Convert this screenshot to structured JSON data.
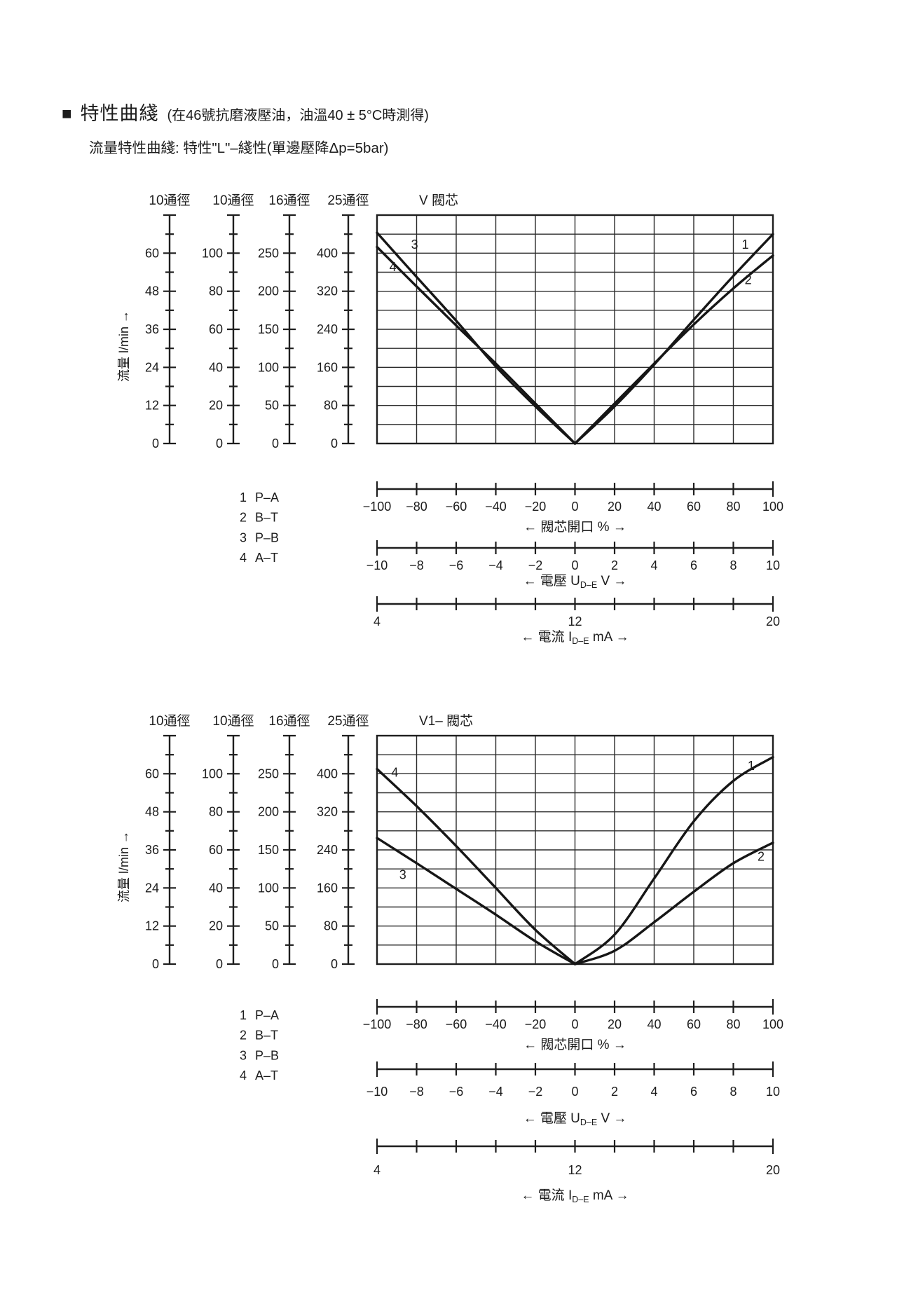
{
  "page": {
    "marker": "■",
    "heading": "特性曲綫",
    "heading_note": "(在46號抗磨液壓油，油溫40 ± 5°C時測得)",
    "subtitle": "流量特性曲綫: 特性\"L\"–綫性(單邊壓降Δp=5bar)"
  },
  "chart_data": [
    {
      "type": "line",
      "title": "V 閥芯",
      "grid": {
        "cols": 10,
        "rows": 12,
        "grid_on": true
      },
      "y_axis": {
        "label": "流量 l/min →",
        "scale_headers": [
          "10通徑",
          "10通徑",
          "16通徑",
          "25通徑"
        ],
        "scale_values": [
          [
            60,
            48,
            36,
            24,
            12,
            0
          ],
          [
            100,
            80,
            60,
            40,
            20,
            0
          ],
          [
            250,
            200,
            150,
            100,
            50,
            0
          ],
          [
            400,
            320,
            240,
            160,
            80,
            0
          ]
        ],
        "plot_full_scale": 480,
        "units_note": "curve values below are flow in l/min on the 25通徑 (0–400) scale"
      },
      "x_axes": [
        {
          "title": "← 閥芯開口 % →",
          "range": [
            -100,
            100
          ],
          "labels": [
            "−100",
            "−80",
            "−60",
            "−40",
            "−20",
            "0",
            "20",
            "40",
            "60",
            "80",
            "100"
          ],
          "label_positions": [
            0,
            1,
            2,
            3,
            4,
            5,
            6,
            7,
            8,
            9,
            10
          ]
        },
        {
          "title_pre": "← 電壓 U",
          "title_sub": "D–E",
          "title_post": " V →",
          "range": [
            -10,
            10
          ],
          "labels": [
            "−10",
            "−8",
            "−6",
            "−4",
            "−2",
            "0",
            "2",
            "4",
            "6",
            "8",
            "10"
          ],
          "label_positions": [
            0,
            1,
            2,
            3,
            4,
            5,
            6,
            7,
            8,
            9,
            10
          ]
        },
        {
          "title_pre": "← 電流 I",
          "title_sub": "D–E",
          "title_post": " mA →",
          "range": [
            4,
            20
          ],
          "labels": [
            "4",
            "12",
            "20"
          ],
          "label_positions": [
            0,
            5,
            10
          ]
        }
      ],
      "legend": [
        {
          "num": "1",
          "label": "P–A"
        },
        {
          "num": "2",
          "label": "B–T"
        },
        {
          "num": "3",
          "label": "P–B"
        },
        {
          "num": "4",
          "label": "A–T"
        }
      ],
      "series": [
        {
          "id": "1",
          "ports": "P–A",
          "points": [
            [
              0,
              0
            ],
            [
              20,
              78
            ],
            [
              40,
              166
            ],
            [
              60,
              260
            ],
            [
              80,
              352
            ],
            [
              100,
              440
            ]
          ],
          "label_at": [
            86,
            418
          ]
        },
        {
          "id": "2",
          "ports": "B–T",
          "points": [
            [
              0,
              0
            ],
            [
              20,
              84
            ],
            [
              40,
              168
            ],
            [
              60,
              250
            ],
            [
              80,
              326
            ],
            [
              100,
              395
            ]
          ],
          "label_at": [
            87.5,
            344
          ]
        },
        {
          "id": "3",
          "ports": "P–B",
          "points": [
            [
              -100,
              443
            ],
            [
              -80,
              350
            ],
            [
              -60,
              258
            ],
            [
              -40,
              162
            ],
            [
              -20,
              78
            ],
            [
              0,
              0
            ]
          ],
          "label_at": [
            -81,
            418
          ]
        },
        {
          "id": "4",
          "ports": "A–T",
          "points": [
            [
              -100,
              413
            ],
            [
              -80,
              330
            ],
            [
              -60,
              248
            ],
            [
              -40,
              168
            ],
            [
              -20,
              84
            ],
            [
              0,
              0
            ]
          ],
          "label_at": [
            -92,
            371
          ]
        }
      ]
    },
    {
      "type": "line",
      "title": "V1– 閥芯",
      "grid": {
        "cols": 10,
        "rows": 12,
        "grid_on": true
      },
      "y_axis": {
        "label": "流量 l/min →",
        "scale_headers": [
          "10通徑",
          "10通徑",
          "16通徑",
          "25通徑"
        ],
        "scale_values": [
          [
            60,
            48,
            36,
            24,
            12,
            0
          ],
          [
            100,
            80,
            60,
            40,
            20,
            0
          ],
          [
            250,
            200,
            150,
            100,
            50,
            0
          ],
          [
            400,
            320,
            240,
            160,
            80,
            0
          ]
        ],
        "plot_full_scale": 480,
        "units_note": "curve values below are flow in l/min on the 25通徑 (0–400) scale"
      },
      "x_axes": [
        {
          "title": "← 閥芯開口 % →",
          "range": [
            -100,
            100
          ],
          "labels": [
            "−100",
            "−80",
            "−60",
            "−40",
            "−20",
            "0",
            "20",
            "40",
            "60",
            "80",
            "100"
          ],
          "label_positions": [
            0,
            1,
            2,
            3,
            4,
            5,
            6,
            7,
            8,
            9,
            10
          ]
        },
        {
          "title_pre": "← 電壓 U",
          "title_sub": "D–E",
          "title_post": " V →",
          "range": [
            -10,
            10
          ],
          "labels": [
            "−10",
            "−8",
            "−6",
            "−4",
            "−2",
            "0",
            "2",
            "4",
            "6",
            "8",
            "10"
          ],
          "label_positions": [
            0,
            1,
            2,
            3,
            4,
            5,
            6,
            7,
            8,
            9,
            10
          ]
        },
        {
          "title_pre": "← 電流 I",
          "title_sub": "D–E",
          "title_post": " mA →",
          "range": [
            4,
            20
          ],
          "labels": [
            "4",
            "12",
            "20"
          ],
          "label_positions": [
            0,
            5,
            10
          ]
        }
      ],
      "legend": [
        {
          "num": "1",
          "label": "P–A"
        },
        {
          "num": "2",
          "label": "B–T"
        },
        {
          "num": "3",
          "label": "P–B"
        },
        {
          "num": "4",
          "label": "A–T"
        }
      ],
      "series": [
        {
          "id": "1",
          "ports": "P–A",
          "points": [
            [
              0,
              0
            ],
            [
              20,
              62
            ],
            [
              40,
              180
            ],
            [
              60,
              300
            ],
            [
              80,
              385
            ],
            [
              100,
              435
            ]
          ],
          "label_at": [
            89,
            417
          ]
        },
        {
          "id": "2",
          "ports": "B–T",
          "points": [
            [
              0,
              0
            ],
            [
              20,
              28
            ],
            [
              40,
              88
            ],
            [
              60,
              152
            ],
            [
              80,
              212
            ],
            [
              100,
              255
            ]
          ],
          "label_at": [
            94,
            226
          ]
        },
        {
          "id": "3",
          "ports": "P–B",
          "points": [
            [
              -100,
              265
            ],
            [
              -80,
              212
            ],
            [
              -60,
              158
            ],
            [
              -40,
              104
            ],
            [
              -20,
              48
            ],
            [
              0,
              0
            ]
          ],
          "label_at": [
            -87,
            188
          ]
        },
        {
          "id": "4",
          "ports": "A–T",
          "points": [
            [
              -100,
              410
            ],
            [
              -80,
              332
            ],
            [
              -60,
              248
            ],
            [
              -40,
              160
            ],
            [
              -20,
              72
            ],
            [
              0,
              0
            ]
          ],
          "label_at": [
            -91,
            403
          ]
        }
      ]
    }
  ]
}
